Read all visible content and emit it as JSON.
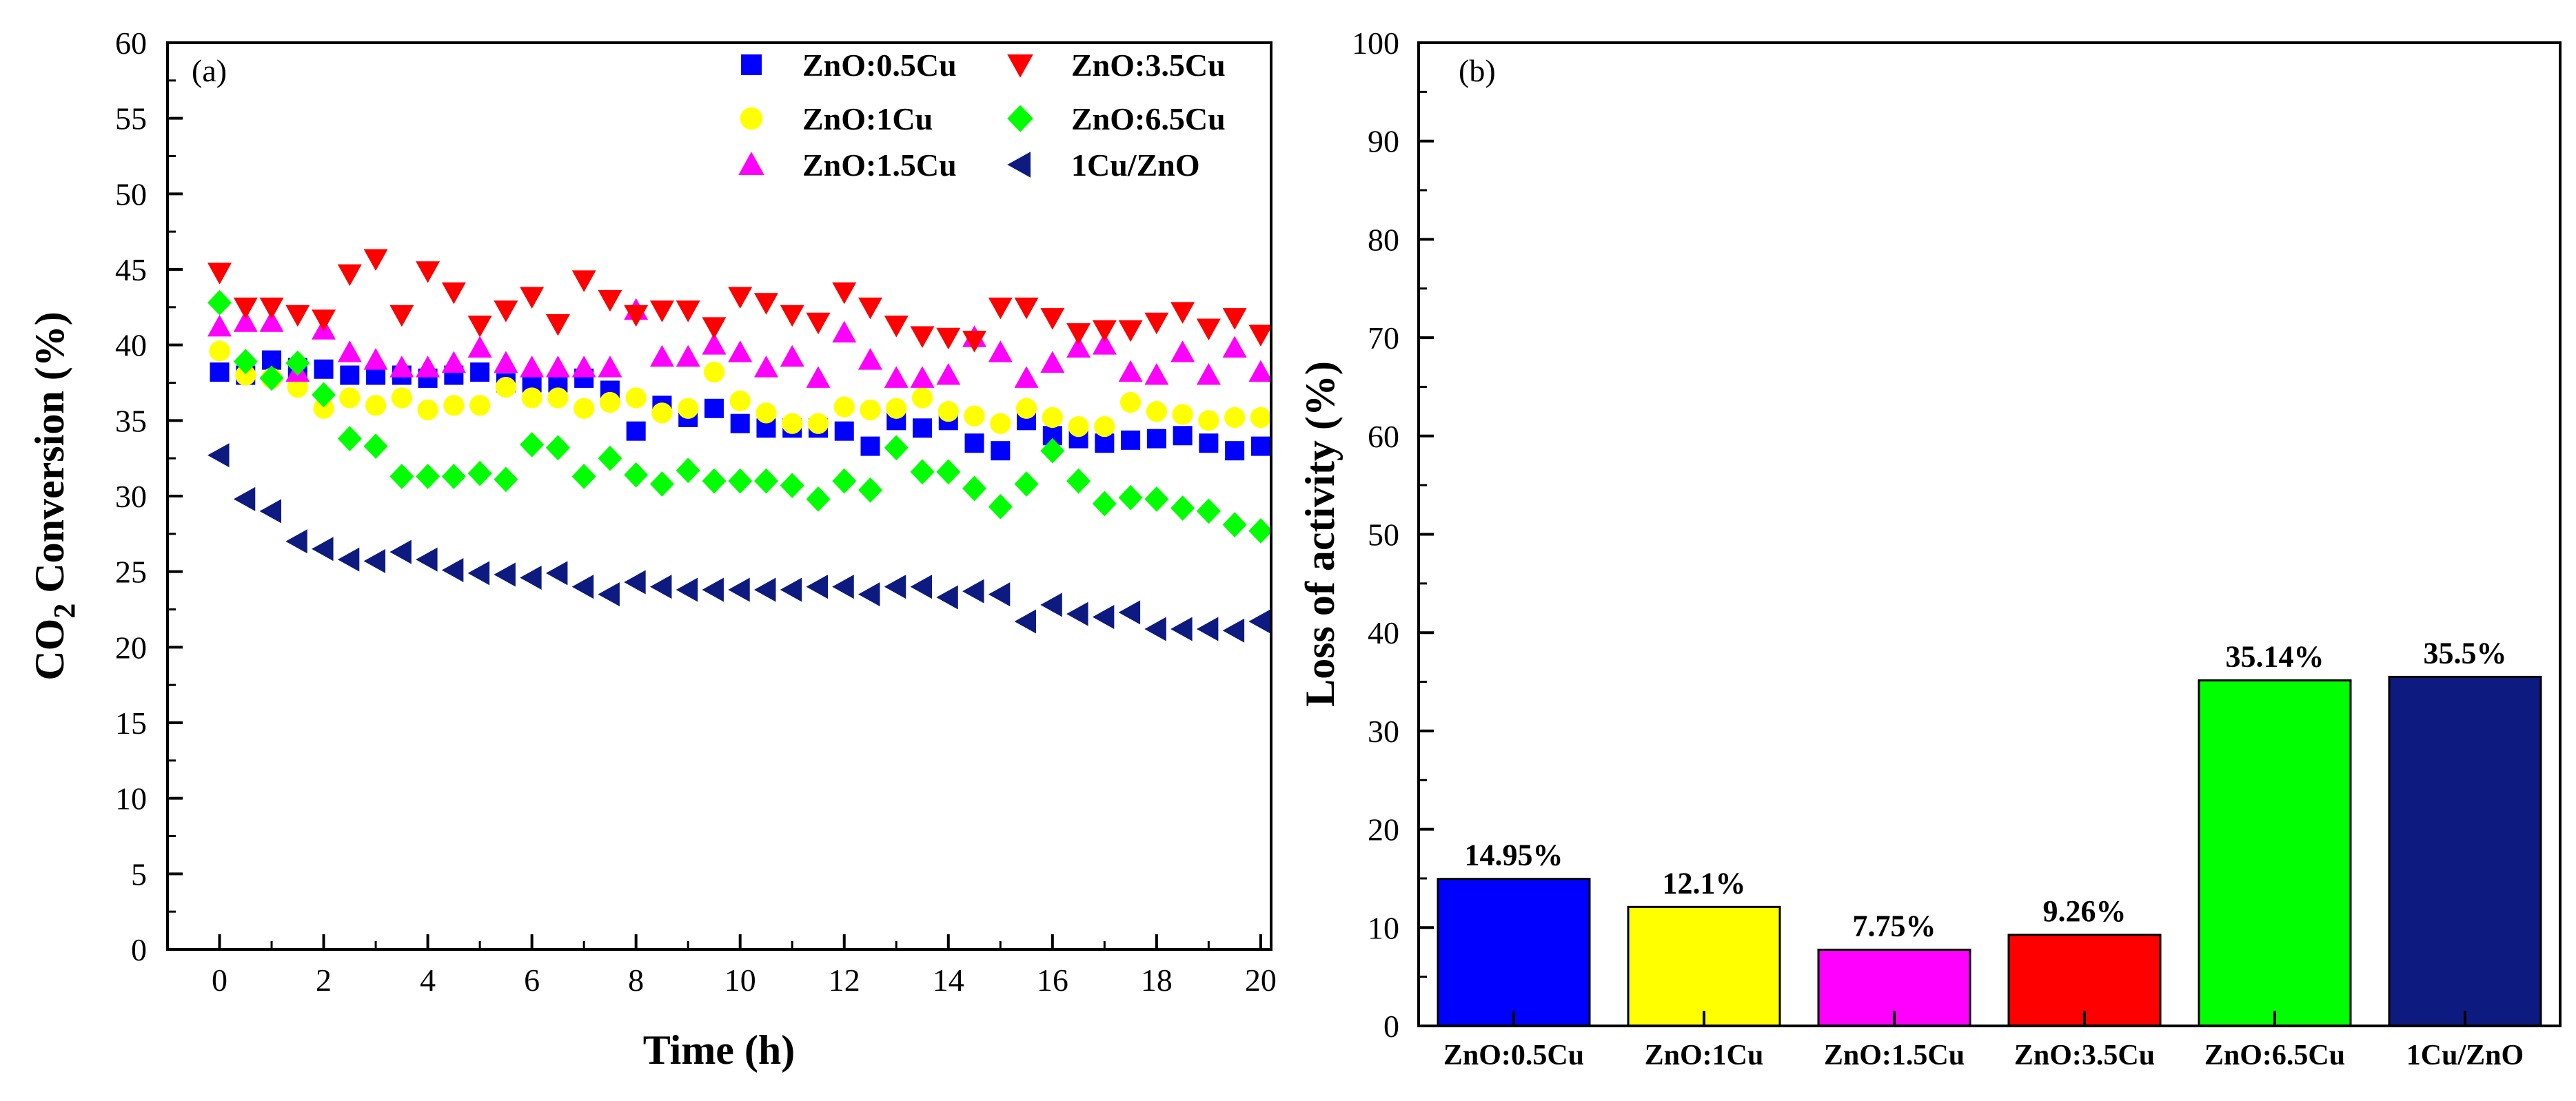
{
  "chart_data": [
    {
      "panel": "(a)",
      "type": "scatter",
      "xlabel": "Time (h)",
      "ylabel_main": "CO",
      "ylabel_sub": "2",
      "ylabel_tail": " Conversion (%)",
      "xlim": [
        -1,
        20.2
      ],
      "ylim": [
        0,
        60
      ],
      "xticks": [
        0,
        2,
        4,
        6,
        8,
        10,
        12,
        14,
        16,
        18,
        20
      ],
      "yticks": [
        0,
        5,
        10,
        15,
        20,
        25,
        30,
        35,
        40,
        45,
        50,
        55,
        60
      ],
      "x": [
        0,
        0.5,
        1,
        1.5,
        2,
        2.5,
        3,
        3.5,
        4,
        4.5,
        5,
        5.5,
        6,
        6.5,
        7,
        7.5,
        8,
        8.5,
        9,
        9.5,
        10,
        10.5,
        11,
        11.5,
        12,
        12.5,
        13,
        13.5,
        14,
        14.5,
        15,
        15.5,
        16,
        16.5,
        17,
        17.5,
        18,
        18.5,
        19,
        19.5,
        20
      ],
      "series": [
        {
          "name": "ZnO:0.5Cu",
          "marker": "square",
          "color": "#0000FF",
          "values": [
            38.2,
            38.0,
            39.0,
            38.5,
            38.4,
            38.0,
            38.0,
            38.0,
            37.8,
            38.0,
            38.2,
            37.5,
            37.5,
            37.5,
            37.8,
            37.0,
            34.3,
            36.0,
            35.2,
            35.8,
            34.8,
            34.5,
            34.5,
            34.5,
            34.3,
            33.3,
            35.0,
            34.5,
            35.0,
            33.5,
            33.0,
            35.0,
            34.0,
            33.8,
            33.5,
            33.7,
            33.8,
            34.0,
            33.5,
            33.0,
            33.3
          ]
        },
        {
          "name": "ZnO:1Cu",
          "marker": "circle",
          "color": "#FFFF00",
          "values": [
            39.6,
            38.0,
            37.8,
            37.2,
            35.8,
            36.5,
            36.0,
            36.5,
            35.7,
            36.0,
            36.0,
            37.2,
            36.5,
            36.5,
            35.8,
            36.2,
            36.5,
            35.5,
            35.8,
            38.2,
            36.3,
            35.5,
            34.8,
            34.8,
            35.9,
            35.7,
            35.8,
            36.5,
            35.6,
            35.3,
            34.8,
            35.8,
            35.2,
            34.6,
            34.6,
            36.2,
            35.6,
            35.4,
            35.0,
            35.2,
            35.2
          ]
        },
        {
          "name": "ZnO:1.5Cu",
          "marker": "triangle-up",
          "color": "#FF00FF",
          "values": [
            41.2,
            41.5,
            41.5,
            38.2,
            41.0,
            39.5,
            39.0,
            38.5,
            38.5,
            38.8,
            39.8,
            38.8,
            38.5,
            38.5,
            38.5,
            38.5,
            42.3,
            39.2,
            39.2,
            40.0,
            39.5,
            38.5,
            39.2,
            37.8,
            40.8,
            39.0,
            37.8,
            37.8,
            38.0,
            40.5,
            39.5,
            37.8,
            38.8,
            39.8,
            40.0,
            38.2,
            38.0,
            39.5,
            38.0,
            39.8,
            38.2
          ]
        },
        {
          "name": "ZnO:3.5Cu",
          "marker": "triangle-down",
          "color": "#FF0000",
          "values": [
            44.8,
            42.5,
            42.5,
            42.0,
            41.7,
            44.7,
            45.7,
            42.0,
            44.9,
            43.5,
            41.3,
            42.3,
            43.2,
            41.4,
            44.3,
            43.0,
            42.0,
            42.3,
            42.3,
            41.2,
            43.2,
            42.8,
            42.0,
            41.5,
            43.5,
            42.5,
            41.3,
            40.6,
            40.5,
            40.3,
            42.5,
            42.5,
            41.8,
            40.8,
            41.0,
            41.0,
            41.5,
            42.2,
            41.1,
            41.8,
            40.7
          ]
        },
        {
          "name": "ZnO:6.5Cu",
          "marker": "diamond",
          "color": "#00FF00",
          "values": [
            42.8,
            38.9,
            37.8,
            38.8,
            36.7,
            33.8,
            33.3,
            31.3,
            31.3,
            31.3,
            31.5,
            31.1,
            33.4,
            33.2,
            31.3,
            32.5,
            31.4,
            30.8,
            31.7,
            31.0,
            31.0,
            31.0,
            30.7,
            29.8,
            31.0,
            30.4,
            33.2,
            31.6,
            31.6,
            30.5,
            29.3,
            30.8,
            33.0,
            31.0,
            29.5,
            29.9,
            29.8,
            29.2,
            29.0,
            28.1,
            27.7
          ]
        },
        {
          "name": "1Cu/ZnO",
          "marker": "triangle-left",
          "color": "#0D1B80",
          "values": [
            32.7,
            29.8,
            29.0,
            27.0,
            26.5,
            25.8,
            25.7,
            26.3,
            25.8,
            25.1,
            24.9,
            24.8,
            24.6,
            24.9,
            24.0,
            23.5,
            24.3,
            24.0,
            23.8,
            23.8,
            23.8,
            23.8,
            23.8,
            24.0,
            24.0,
            23.5,
            24.0,
            24.0,
            23.3,
            23.7,
            23.5,
            21.7,
            22.8,
            22.2,
            22.0,
            22.3,
            21.2,
            21.2,
            21.2,
            21.1,
            21.7
          ]
        }
      ],
      "legend": "top-right, 3 rows x 2 columns"
    },
    {
      "panel": "(b)",
      "type": "bar",
      "ylabel": "Loss of activity (%)",
      "ylim": [
        0,
        100
      ],
      "yticks": [
        0,
        10,
        20,
        30,
        40,
        50,
        60,
        70,
        80,
        90,
        100
      ],
      "categories": [
        "ZnO:0.5Cu",
        "ZnO:1Cu",
        "ZnO:1.5Cu",
        "ZnO:3.5Cu",
        "ZnO:6.5Cu",
        "1Cu/ZnO"
      ],
      "values": [
        14.95,
        12.1,
        7.75,
        9.26,
        35.14,
        35.5
      ],
      "value_labels": [
        "14.95%",
        "12.1%",
        "7.75%",
        "9.26%",
        "35.14%",
        "35.5%"
      ],
      "colors": [
        "#0000FF",
        "#FFFF00",
        "#FF00FF",
        "#FF0000",
        "#00FF00",
        "#0D1B80"
      ]
    }
  ]
}
